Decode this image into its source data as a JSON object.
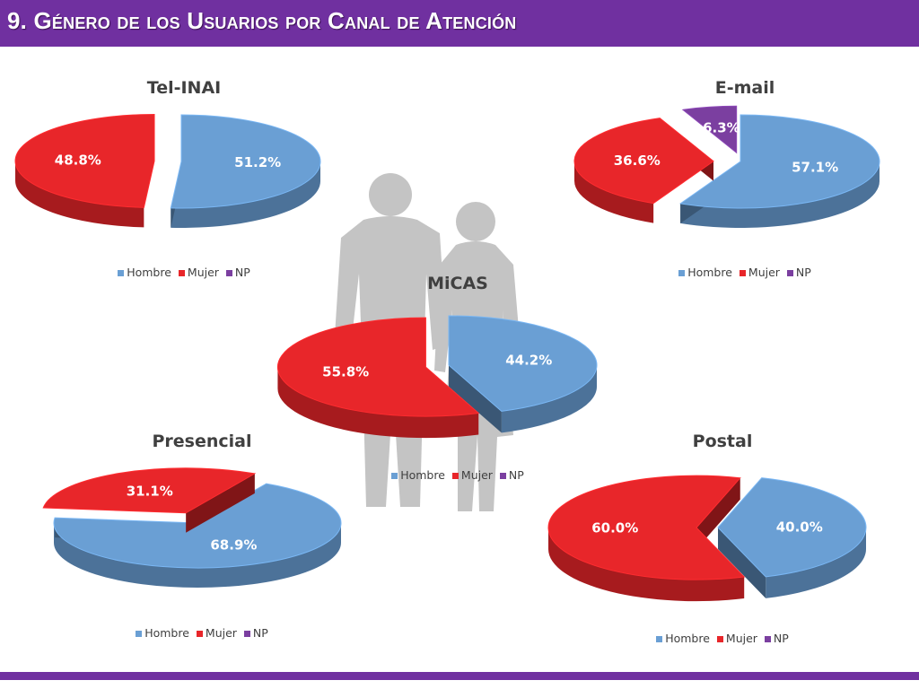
{
  "header": {
    "title": "9. Género de los Usuarios por Canal de Atención"
  },
  "colors": {
    "header": "#7030a0",
    "hombre": "#6a9fd4",
    "mujer": "#e8262a",
    "np": "#7b3fa0"
  },
  "chart_data": [
    {
      "type": "pie",
      "title": "Tel-INAI",
      "legend": [
        "Hombre",
        "Mujer",
        "NP"
      ],
      "slices": [
        {
          "name": "Hombre",
          "value": 51.2,
          "label": "51.2%"
        },
        {
          "name": "Mujer",
          "value": 48.8,
          "label": "48.8%"
        }
      ]
    },
    {
      "type": "pie",
      "title": "E-mail",
      "legend": [
        "Hombre",
        "Mujer",
        "NP"
      ],
      "slices": [
        {
          "name": "Hombre",
          "value": 57.1,
          "label": "57.1%"
        },
        {
          "name": "Mujer",
          "value": 36.6,
          "label": "36.6%"
        },
        {
          "name": "NP",
          "value": 6.3,
          "label": "6.3%"
        }
      ]
    },
    {
      "type": "pie",
      "title": "MiCAS",
      "legend": [
        "Hombre",
        "Mujer",
        "NP"
      ],
      "slices": [
        {
          "name": "Hombre",
          "value": 44.2,
          "label": "44.2%"
        },
        {
          "name": "Mujer",
          "value": 55.8,
          "label": "55.8%"
        }
      ]
    },
    {
      "type": "pie",
      "title": "Presencial",
      "legend": [
        "Hombre",
        "Mujer",
        "NP"
      ],
      "slices": [
        {
          "name": "Hombre",
          "value": 68.9,
          "label": "68.9%"
        },
        {
          "name": "Mujer",
          "value": 31.1,
          "label": "31.1%"
        }
      ]
    },
    {
      "type": "pie",
      "title": "Postal",
      "legend": [
        "Hombre",
        "Mujer",
        "NP"
      ],
      "slices": [
        {
          "name": "Hombre",
          "value": 40.0,
          "label": "40.0%"
        },
        {
          "name": "Mujer",
          "value": 60.0,
          "label": "60.0%"
        }
      ]
    }
  ]
}
